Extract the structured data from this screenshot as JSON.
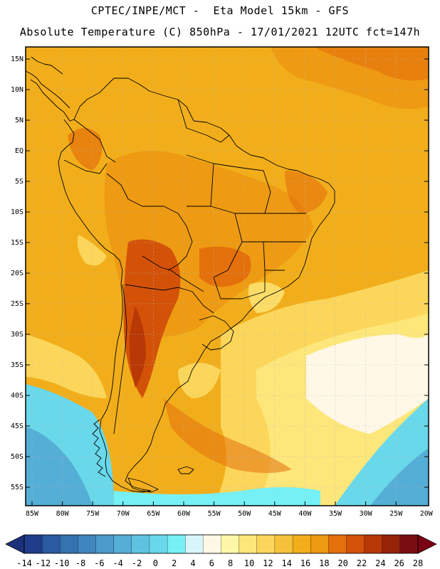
{
  "header": {
    "line1": "CPTEC/INPE/MCT -  Eta Model 15km - GFS",
    "line2": "Absolute Temperature (C) 850hPa - 17/01/2021 12UTC fct=147h"
  },
  "axes": {
    "lat_labels": [
      "15N",
      "10N",
      "5N",
      "EQ",
      "5S",
      "10S",
      "15S",
      "20S",
      "25S",
      "30S",
      "35S",
      "40S",
      "45S",
      "50S",
      "55S"
    ],
    "lat_values": [
      15,
      10,
      5,
      0,
      -5,
      -10,
      -15,
      -20,
      -25,
      -30,
      -35,
      -40,
      -45,
      -50,
      -55
    ],
    "lon_labels": [
      "85W",
      "80W",
      "75W",
      "70W",
      "65W",
      "60W",
      "55W",
      "50W",
      "45W",
      "40W",
      "35W",
      "30W",
      "25W",
      "20W"
    ],
    "lon_values": [
      -85,
      -80,
      -75,
      -70,
      -65,
      -60,
      -55,
      -50,
      -45,
      -40,
      -35,
      -30,
      -25,
      -20
    ],
    "lat_range": [
      -58,
      17
    ],
    "lon_range": [
      -86,
      -20
    ]
  },
  "colorbar": {
    "labels": [
      "-14",
      "-12",
      "-10",
      "-8",
      "-6",
      "-4",
      "-2",
      "0",
      "2",
      "4",
      "6",
      "8",
      "10",
      "12",
      "14",
      "16",
      "18",
      "20",
      "22",
      "24",
      "26",
      "28"
    ],
    "colors": [
      "#1f3d8a",
      "#2a5aa0",
      "#3572b0",
      "#3f86bf",
      "#4a9acb",
      "#55aed6",
      "#5ec3e0",
      "#69d8ea",
      "#75f0f5",
      "#d7f5fa",
      "#fff8e6",
      "#fff7a8",
      "#fde77a",
      "#fbd65a",
      "#f6c23a",
      "#f2ae1a",
      "#ee9a12",
      "#e4700c",
      "#d35208",
      "#b83806",
      "#962208",
      "#7a0d10"
    ],
    "under_color": "#1c2f7a",
    "over_color": "#7a0015"
  },
  "legend_colors": {
    "ocean_hot": "#f2ae1a",
    "land_warm": "#ee9a12",
    "land_hot": "#e4700c",
    "andes_hot": "#d35208",
    "cool_light": "#fbd65a",
    "pale": "#fff7a8",
    "cream": "#fff8e6",
    "cyan": "#69d8ea",
    "cyan_dark": "#55aed6"
  }
}
